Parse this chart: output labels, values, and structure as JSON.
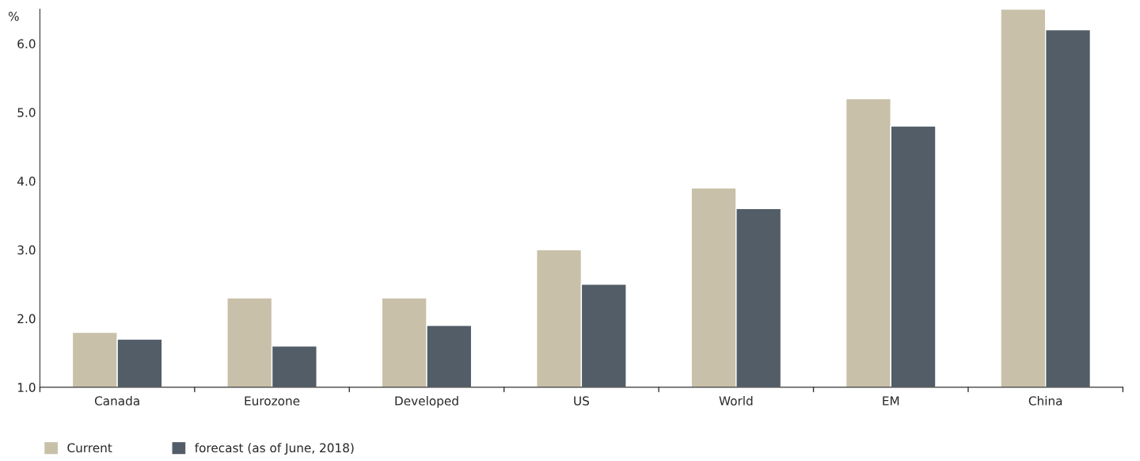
{
  "chart_data": {
    "type": "bar",
    "ylabel": "%",
    "categories": [
      "Canada",
      "Eurozone",
      "Developed",
      "US",
      "World",
      "EM",
      "China"
    ],
    "series": [
      {
        "name": "Current",
        "color": "#c8c0a8",
        "values": [
          1.8,
          2.3,
          2.3,
          3.0,
          3.9,
          5.2,
          6.5
        ]
      },
      {
        "name": "forecast (as of June, 2018)",
        "color": "#525d68",
        "values": [
          1.7,
          1.6,
          1.9,
          2.5,
          3.6,
          4.8,
          6.2
        ]
      }
    ],
    "ylim": [
      1.0,
      6.5
    ],
    "yticks": [
      {
        "value": 1,
        "label": "1.0"
      },
      {
        "value": 2,
        "label": "2.0"
      },
      {
        "value": 3,
        "label": "3.0"
      },
      {
        "value": 4,
        "label": "4.0"
      },
      {
        "value": 5,
        "label": "5.0"
      },
      {
        "value": 6,
        "label": "6.0"
      }
    ],
    "grid": false,
    "legend": "bottom left"
  }
}
